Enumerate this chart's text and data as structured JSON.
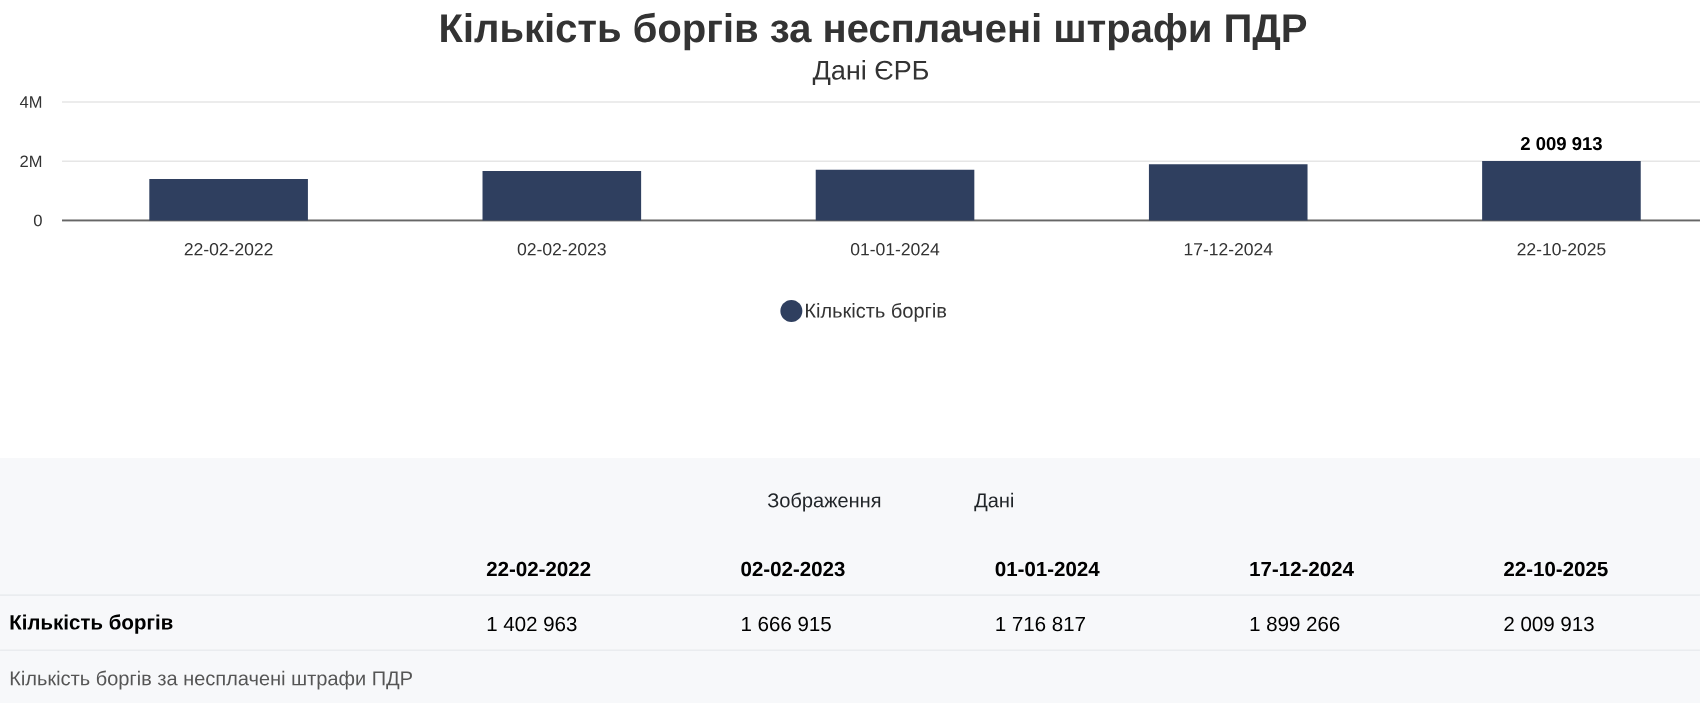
{
  "chart_data": {
    "type": "bar",
    "title": "Кількість боргів за несплачені штрафи ПДР",
    "subtitle": "Дані ЄРБ",
    "categories": [
      "22-02-2022",
      "02-02-2023",
      "01-01-2024",
      "17-12-2024",
      "22-10-2025"
    ],
    "series": [
      {
        "name": "Кількість боргів",
        "color": "#2f3f5f",
        "values": [
          1402963,
          1666915,
          1716817,
          1899266,
          2009913
        ],
        "value_labels": [
          null,
          null,
          null,
          null,
          "2 009 913"
        ]
      }
    ],
    "ylim": [
      0,
      4000000
    ],
    "yticks": [
      0,
      {
        "value": 2000000,
        "label": "2M"
      },
      {
        "value": 4000000,
        "label": "4M"
      }
    ],
    "grid": "y",
    "legend": "bottom",
    "annotations": [
      "Зображення",
      "Дані",
      "1 402 963",
      "1 666 915",
      "1 716 817",
      "1 899 266",
      "2 009 913",
      "Кількість боргів за несплачені штрафи ПДР"
    ]
  }
}
